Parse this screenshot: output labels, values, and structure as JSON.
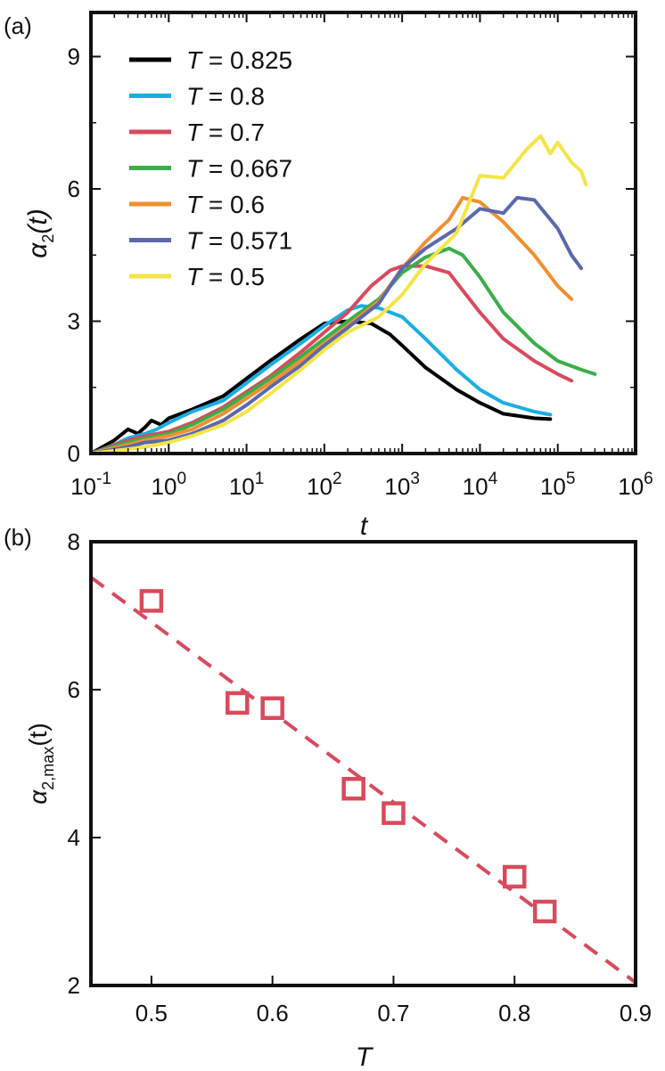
{
  "panel_a_label": "(a)",
  "panel_b_label": "(b)",
  "colors": {
    "T=0.825": "#000000",
    "T=0.8": "#1aaee3",
    "T=0.7": "#d94a5c",
    "T=0.667": "#3aae49",
    "T=0.6": "#f08f31",
    "T=0.571": "#5b68ad",
    "T=0.5": "#f4e445",
    "fit": "#d94a5c",
    "markers": "#d94a5c"
  },
  "chart_data": [
    {
      "type": "line",
      "panel": "a",
      "xscale": "log",
      "xlabel": "t",
      "ylabel": "α2(t)",
      "xlim": [
        0.1,
        1000000
      ],
      "ylim": [
        0,
        10
      ],
      "xticks": [
        0.1,
        1,
        10,
        100,
        1000,
        10000,
        100000,
        1000000
      ],
      "xtick_labels": [
        {
          "base": "10",
          "exp": "-1"
        },
        {
          "base": "10",
          "exp": "0"
        },
        {
          "base": "10",
          "exp": "1"
        },
        {
          "base": "10",
          "exp": "2"
        },
        {
          "base": "10",
          "exp": "3"
        },
        {
          "base": "10",
          "exp": "4"
        },
        {
          "base": "10",
          "exp": "5"
        },
        {
          "base": "10",
          "exp": "6"
        }
      ],
      "yticks": [
        0,
        3,
        6,
        9
      ],
      "ytick_labels": [
        "0",
        "3",
        "6",
        "9"
      ],
      "legend_position": "top-left",
      "series": [
        {
          "name": "T = 0.825",
          "T_symbol": "T",
          "T_value": "= 0.825",
          "color_key": "T=0.825",
          "x": [
            0.1,
            0.2,
            0.3,
            0.4,
            0.5,
            0.6,
            0.8,
            1,
            2,
            5,
            10,
            20,
            50,
            100,
            200,
            400,
            700,
            1000,
            2000,
            5000,
            10000,
            20000,
            50000,
            80000
          ],
          "y": [
            0.0,
            0.3,
            0.55,
            0.45,
            0.6,
            0.75,
            0.65,
            0.8,
            1.0,
            1.3,
            1.7,
            2.1,
            2.6,
            2.95,
            3.0,
            2.95,
            2.7,
            2.45,
            1.95,
            1.45,
            1.15,
            0.9,
            0.8,
            0.78
          ]
        },
        {
          "name": "T = 0.8",
          "T_symbol": "T",
          "T_value": "= 0.8",
          "color_key": "T=0.8",
          "x": [
            0.1,
            0.2,
            0.3,
            0.5,
            0.7,
            1,
            2,
            5,
            10,
            20,
            50,
            100,
            200,
            300,
            500,
            1000,
            2000,
            5000,
            10000,
            20000,
            50000,
            80000
          ],
          "y": [
            0.0,
            0.2,
            0.35,
            0.45,
            0.55,
            0.7,
            0.95,
            1.2,
            1.6,
            2.0,
            2.5,
            2.9,
            3.25,
            3.35,
            3.3,
            3.1,
            2.6,
            1.9,
            1.45,
            1.15,
            0.95,
            0.88
          ]
        },
        {
          "name": "T = 0.7",
          "T_symbol": "T",
          "T_value": "= 0.7",
          "color_key": "T=0.7",
          "x": [
            0.1,
            0.3,
            0.5,
            1,
            2,
            5,
            10,
            20,
            50,
            100,
            200,
            400,
            700,
            1000,
            2000,
            4000,
            6000,
            10000,
            20000,
            50000,
            100000,
            150000
          ],
          "y": [
            0.0,
            0.3,
            0.4,
            0.5,
            0.7,
            1.05,
            1.4,
            1.75,
            2.3,
            2.75,
            3.2,
            3.8,
            4.15,
            4.25,
            4.25,
            4.1,
            3.7,
            3.2,
            2.6,
            2.1,
            1.8,
            1.65
          ]
        },
        {
          "name": "T = 0.667",
          "T_symbol": "T",
          "T_value": "= 0.667",
          "color_key": "T=0.667",
          "x": [
            0.1,
            0.3,
            0.5,
            1,
            2,
            5,
            10,
            20,
            50,
            100,
            200,
            500,
            1000,
            2000,
            4000,
            6000,
            10000,
            20000,
            50000,
            100000,
            200000,
            300000
          ],
          "y": [
            0.0,
            0.25,
            0.35,
            0.45,
            0.65,
            1.0,
            1.35,
            1.7,
            2.2,
            2.6,
            3.0,
            3.5,
            4.1,
            4.45,
            4.65,
            4.5,
            4.0,
            3.2,
            2.5,
            2.1,
            1.9,
            1.8
          ]
        },
        {
          "name": "T = 0.6",
          "T_symbol": "T",
          "T_value": "= 0.6",
          "color_key": "T=0.6",
          "x": [
            0.1,
            0.3,
            0.5,
            1,
            2,
            5,
            10,
            20,
            50,
            100,
            200,
            500,
            1000,
            2000,
            4000,
            6000,
            10000,
            20000,
            50000,
            100000,
            150000
          ],
          "y": [
            0.0,
            0.2,
            0.3,
            0.4,
            0.55,
            0.9,
            1.25,
            1.6,
            2.1,
            2.5,
            2.9,
            3.45,
            4.2,
            4.8,
            5.3,
            5.8,
            5.7,
            5.25,
            4.5,
            3.8,
            3.5
          ]
        },
        {
          "name": "T = 0.571",
          "T_symbol": "T",
          "T_value": "= 0.571",
          "color_key": "T=0.571",
          "x": [
            0.1,
            0.3,
            0.5,
            1,
            2,
            5,
            10,
            20,
            50,
            100,
            200,
            500,
            1000,
            2000,
            5000,
            10000,
            20000,
            30000,
            50000,
            100000,
            150000,
            200000
          ],
          "y": [
            0.0,
            0.15,
            0.25,
            0.3,
            0.45,
            0.75,
            1.1,
            1.5,
            2.0,
            2.45,
            2.85,
            3.4,
            4.2,
            4.65,
            5.1,
            5.55,
            5.45,
            5.8,
            5.75,
            5.1,
            4.5,
            4.2
          ]
        },
        {
          "name": "T = 0.5",
          "T_symbol": "T",
          "T_value": "= 0.5",
          "color_key": "T=0.5",
          "x": [
            0.1,
            0.3,
            0.5,
            1,
            2,
            5,
            10,
            20,
            50,
            100,
            200,
            500,
            1000,
            2000,
            5000,
            10000,
            20000,
            40000,
            60000,
            80000,
            100000,
            150000,
            200000,
            230000
          ],
          "y": [
            0.0,
            0.1,
            0.15,
            0.25,
            0.4,
            0.65,
            0.95,
            1.35,
            1.9,
            2.35,
            2.75,
            3.1,
            3.6,
            4.3,
            5.0,
            6.3,
            6.25,
            6.9,
            7.2,
            6.8,
            7.05,
            6.6,
            6.4,
            6.1
          ]
        }
      ]
    },
    {
      "type": "scatter",
      "panel": "b",
      "xlabel": "T",
      "ylabel_main": "α",
      "ylabel_sub": "2,max",
      "ylabel_suffix": "(t)",
      "xlim": [
        0.45,
        0.9
      ],
      "ylim": [
        2,
        8
      ],
      "xticks": [
        0.5,
        0.6,
        0.7,
        0.8,
        0.9
      ],
      "xtick_labels": [
        "0.5",
        "0.6",
        "0.7",
        "0.8",
        "0.9"
      ],
      "yticks": [
        2,
        4,
        6,
        8
      ],
      "ytick_labels": [
        "2",
        "4",
        "6",
        "8"
      ],
      "x": [
        0.5,
        0.571,
        0.6,
        0.667,
        0.7,
        0.8,
        0.825
      ],
      "y": [
        7.2,
        5.82,
        5.75,
        4.66,
        4.33,
        3.47,
        3.0
      ],
      "fit_line": {
        "style": "dashed",
        "x": [
          0.45,
          0.9
        ],
        "y": [
          7.52,
          2.04
        ]
      }
    }
  ]
}
